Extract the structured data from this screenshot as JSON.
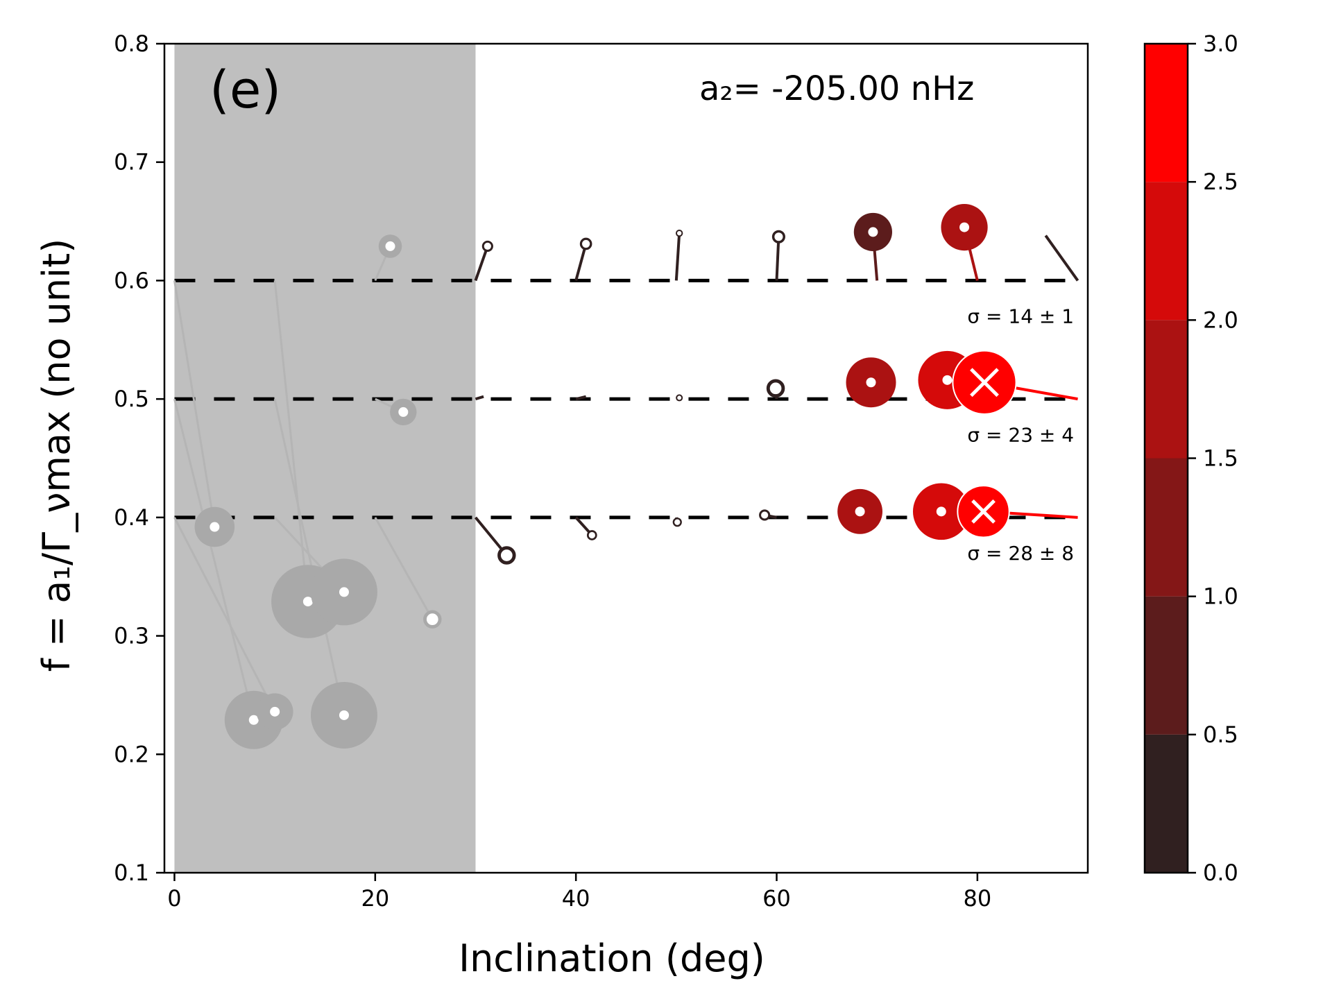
{
  "panel_label": "(e)",
  "a2_annotation": "a₂= -205.00 nHz",
  "chart_data": {
    "type": "scatter",
    "xlabel": "Inclination (deg)",
    "ylabel": "f = a₁/Γ_νmax (no unit)",
    "xlim": [
      -1,
      91
    ],
    "ylim": [
      0.1,
      0.8
    ],
    "xticks": [
      0,
      20,
      40,
      60,
      80
    ],
    "yticks": [
      0.1,
      0.2,
      0.3,
      0.4,
      0.5,
      0.6,
      0.7,
      0.8
    ],
    "xtick_labels": [
      "0",
      "20",
      "40",
      "60",
      "80"
    ],
    "ytick_labels": [
      "0.1",
      "0.2",
      "0.3",
      "0.4",
      "0.5",
      "0.6",
      "0.7",
      "0.8"
    ],
    "shaded_region": {
      "x": [
        0,
        30
      ],
      "color": "#bfbfbf"
    },
    "reference_lines": [
      0.4,
      0.5,
      0.6
    ],
    "sigma_annotations": [
      {
        "text": "σ = 14 ± 1",
        "x": 79,
        "y": 0.57
      },
      {
        "text": "σ = 23 ± 4",
        "x": 79,
        "y": 0.47
      },
      {
        "text": "σ = 28 ± 8",
        "x": 79,
        "y": 0.37
      }
    ],
    "colorbar": {
      "min": 0.0,
      "max": 3.0,
      "tick_labels": [
        "0.0",
        "0.5",
        "1.0",
        "1.5",
        "2.0",
        "2.5",
        "3.0"
      ],
      "bands": [
        "#302020",
        "#5c1c1c",
        "#841717",
        "#ab1212",
        "#d50a0a",
        "#ff0000"
      ]
    },
    "points": [
      {
        "true_x": 0,
        "true_y": 0.6,
        "x": 4,
        "y": 0.392,
        "size": 2.4,
        "err": 0
      },
      {
        "true_x": 10,
        "true_y": 0.6,
        "x": 13.3,
        "y": 0.329,
        "size": 4.4,
        "err": 0
      },
      {
        "true_x": 20,
        "true_y": 0.6,
        "x": 21.5,
        "y": 0.629,
        "size": 1.4,
        "err": 0
      },
      {
        "true_x": 30,
        "true_y": 0.6,
        "x": 31.2,
        "y": 0.629,
        "size": 0.55,
        "err": 0
      },
      {
        "true_x": 40,
        "true_y": 0.6,
        "x": 41,
        "y": 0.631,
        "size": 0.6,
        "err": 0.3
      },
      {
        "true_x": 50,
        "true_y": 0.6,
        "x": 50.3,
        "y": 0.64,
        "size": 0.35,
        "err": 0.3
      },
      {
        "true_x": 60,
        "true_y": 0.6,
        "x": 60.2,
        "y": 0.637,
        "size": 0.65,
        "err": 0.3
      },
      {
        "true_x": 70,
        "true_y": 0.6,
        "x": 69.6,
        "y": 0.641,
        "size": 2.3,
        "err": 0.7
      },
      {
        "true_x": 80,
        "true_y": 0.6,
        "x": 78.7,
        "y": 0.645,
        "size": 2.8,
        "err": 1.8
      },
      {
        "true_x": 90,
        "true_y": 0.6,
        "x": 86.8,
        "y": 0.638,
        "size": 0,
        "err": 0.3
      },
      {
        "true_x": 0,
        "true_y": 0.5,
        "x": 7.9,
        "y": 0.229,
        "size": 3.5,
        "err": 0
      },
      {
        "true_x": 10,
        "true_y": 0.5,
        "x": 16.9,
        "y": 0.233,
        "size": 4.0,
        "err": 0
      },
      {
        "true_x": 20,
        "true_y": 0.5,
        "x": 22.8,
        "y": 0.489,
        "size": 1.6,
        "err": 0
      },
      {
        "true_x": 30,
        "true_y": 0.5,
        "x": 30.8,
        "y": 0.502,
        "size": 0,
        "err": 0
      },
      {
        "true_x": 40,
        "true_y": 0.5,
        "x": 41,
        "y": 0.502,
        "size": 0,
        "err": 0.3
      },
      {
        "true_x": 50,
        "true_y": 0.5,
        "x": 50.3,
        "y": 0.501,
        "size": 0.25,
        "err": 0.3
      },
      {
        "true_x": 60,
        "true_y": 0.5,
        "x": 59.9,
        "y": 0.509,
        "size": 0.9,
        "err": 0.1
      },
      {
        "true_x": 70,
        "true_y": 0.5,
        "x": 69.4,
        "y": 0.514,
        "size": 3.0,
        "err": 1.7
      },
      {
        "true_x": 80,
        "true_y": 0.5,
        "x": 77,
        "y": 0.516,
        "size": 3.5,
        "err": 2.3
      },
      {
        "true_x": 90,
        "true_y": 0.5,
        "x": 80.7,
        "y": 0.514,
        "size": 3.8,
        "err": 3.0,
        "cross": true
      },
      {
        "true_x": 0,
        "true_y": 0.4,
        "x": 10,
        "y": 0.236,
        "size": 2.2,
        "err": 0
      },
      {
        "true_x": 10,
        "true_y": 0.4,
        "x": 16.9,
        "y": 0.337,
        "size": 4.0,
        "err": 0
      },
      {
        "true_x": 20,
        "true_y": 0.4,
        "x": 25.7,
        "y": 0.314,
        "size": 0.9,
        "err": 0
      },
      {
        "true_x": 30,
        "true_y": 0.4,
        "x": 33.1,
        "y": 0.368,
        "size": 0.9,
        "err": 0
      },
      {
        "true_x": 40,
        "true_y": 0.4,
        "x": 41.6,
        "y": 0.385,
        "size": 0.5,
        "err": 0.1
      },
      {
        "true_x": 50,
        "true_y": 0.4,
        "x": 50.1,
        "y": 0.396,
        "size": 0.45,
        "err": 0.05
      },
      {
        "true_x": 60,
        "true_y": 0.4,
        "x": 58.8,
        "y": 0.402,
        "size": 0.55,
        "err": 0.05
      },
      {
        "true_x": 70,
        "true_y": 0.4,
        "x": 68.3,
        "y": 0.405,
        "size": 2.7,
        "err": 1.7
      },
      {
        "true_x": 80,
        "true_y": 0.4,
        "x": 76.4,
        "y": 0.405,
        "size": 3.4,
        "err": 2.3
      },
      {
        "true_x": 90,
        "true_y": 0.4,
        "x": 80.6,
        "y": 0.405,
        "size": 3.1,
        "err": 3.0,
        "cross": true
      }
    ]
  }
}
